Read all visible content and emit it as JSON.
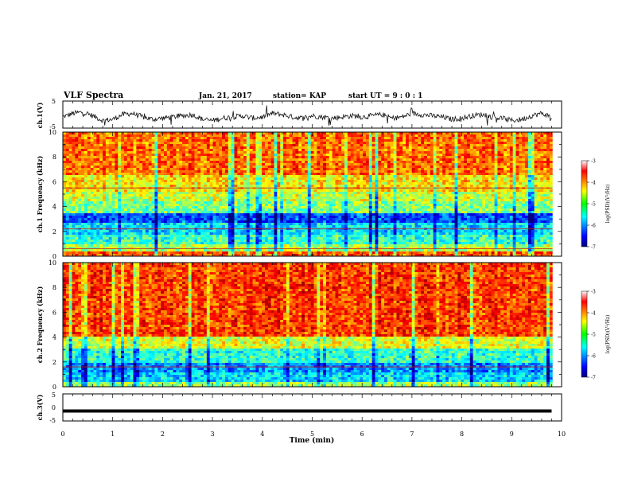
{
  "header": {
    "title": "VLF Spectra",
    "date": "Jan. 21, 2017",
    "station": "station= KAP",
    "start": "start  UT =  9 : 0  : 1"
  },
  "chart_data": [
    {
      "type": "line",
      "name": "ch1-waveform",
      "ylabel": "ch.1(V)",
      "ylim": [
        -5,
        5
      ],
      "yticks": [
        "5",
        "-5"
      ],
      "xlim": [
        0,
        10
      ],
      "x_minutes": [
        0,
        0.2,
        0.4,
        0.6,
        0.8,
        1.0,
        1.2,
        1.4,
        1.6,
        1.8,
        2.0,
        2.2,
        2.4,
        2.6,
        2.8,
        3.0,
        3.2,
        3.4,
        3.6,
        3.8,
        4.0,
        4.2,
        4.4,
        4.6,
        4.8,
        5.0,
        5.2,
        5.4,
        5.6,
        5.8,
        6.0,
        6.2,
        6.4,
        6.6,
        6.8,
        7.0,
        7.2,
        7.4,
        7.6,
        7.8,
        8.0,
        8.2,
        8.4,
        8.6,
        8.8,
        9.0,
        9.2,
        9.4,
        9.6,
        9.8
      ],
      "values": [
        -1.0,
        0.5,
        1.0,
        -0.5,
        -2.5,
        -2.0,
        0.0,
        0.5,
        -1.0,
        -2.0,
        -1.5,
        -1.0,
        -0.5,
        0.0,
        -2.0,
        -2.5,
        -1.5,
        -1.0,
        -0.5,
        -1.5,
        -1.0,
        0.5,
        0.0,
        -1.0,
        -1.5,
        -0.5,
        -1.0,
        -1.5,
        -1.0,
        -0.5,
        -1.0,
        -0.5,
        0.0,
        -1.5,
        -1.0,
        0.5,
        0.0,
        -0.5,
        -1.0,
        -2.0,
        -1.5,
        -0.5,
        0.0,
        -1.0,
        -1.5,
        -2.5,
        -2.0,
        -0.5,
        0.5,
        -1.0
      ]
    },
    {
      "type": "heatmap",
      "name": "ch1-spectrogram",
      "ylabel": "ch.1 Frequency (kHz)",
      "ylim": [
        0,
        10
      ],
      "yticks": [
        "0",
        "2",
        "4",
        "6",
        "8",
        "10"
      ],
      "xlim": [
        0,
        10
      ],
      "colorbar": {
        "label": "log(PSD)(V²/Hz)",
        "range": [
          -7,
          -3
        ],
        "ticks": [
          "-3",
          "-4",
          "-5",
          "-6",
          "-7"
        ]
      },
      "band_levels": [
        {
          "f": [
            0,
            0.3
          ],
          "v": -3.8
        },
        {
          "f": [
            0.3,
            1.0
          ],
          "v": -4.8
        },
        {
          "f": [
            1.0,
            1.8
          ],
          "v": -5.3
        },
        {
          "f": [
            1.8,
            2.6
          ],
          "v": -5.6
        },
        {
          "f": [
            2.6,
            3.4
          ],
          "v": -6.2
        },
        {
          "f": [
            3.4,
            4.5
          ],
          "v": -5.0
        },
        {
          "f": [
            4.5,
            5.2
          ],
          "v": -4.7
        },
        {
          "f": [
            5.2,
            6.5
          ],
          "v": -4.4
        },
        {
          "f": [
            6.5,
            10.0
          ],
          "v": -3.9
        }
      ],
      "lines_khz": [
        5.5,
        2.2,
        0.6
      ]
    },
    {
      "type": "heatmap",
      "name": "ch2-spectrogram",
      "ylabel": "ch.2 Frequency (kHz)",
      "ylim": [
        0,
        10
      ],
      "yticks": [
        "0",
        "2",
        "4",
        "6",
        "8",
        "10"
      ],
      "xlim": [
        0,
        10
      ],
      "colorbar": {
        "label": "log(PSD)(V²/Hz)",
        "range": [
          -7,
          -3
        ],
        "ticks": [
          "-3",
          "-4",
          "-5",
          "-6",
          "-7"
        ]
      },
      "band_levels": [
        {
          "f": [
            0,
            0.4
          ],
          "v": -4.9
        },
        {
          "f": [
            0.4,
            1.2
          ],
          "v": -5.6
        },
        {
          "f": [
            1.2,
            2.0
          ],
          "v": -5.9
        },
        {
          "f": [
            2.0,
            3.0
          ],
          "v": -5.3
        },
        {
          "f": [
            3.0,
            4.0
          ],
          "v": -4.6
        },
        {
          "f": [
            4.0,
            10.0
          ],
          "v": -3.7
        }
      ],
      "lines_khz": [
        1.6
      ]
    },
    {
      "type": "line",
      "name": "ch3-waveform",
      "ylabel": "ch.3(V)",
      "ylim": [
        -5,
        5
      ],
      "yticks": [
        "5",
        "0",
        "-5"
      ],
      "xlim": [
        0,
        10
      ],
      "x_minutes": [
        0,
        9.8
      ],
      "values": [
        -1.5,
        -1.5
      ]
    }
  ],
  "xaxis": {
    "label": "Time (min)",
    "ticks": [
      "0",
      "1",
      "2",
      "3",
      "4",
      "5",
      "6",
      "7",
      "8",
      "9",
      "10"
    ]
  }
}
